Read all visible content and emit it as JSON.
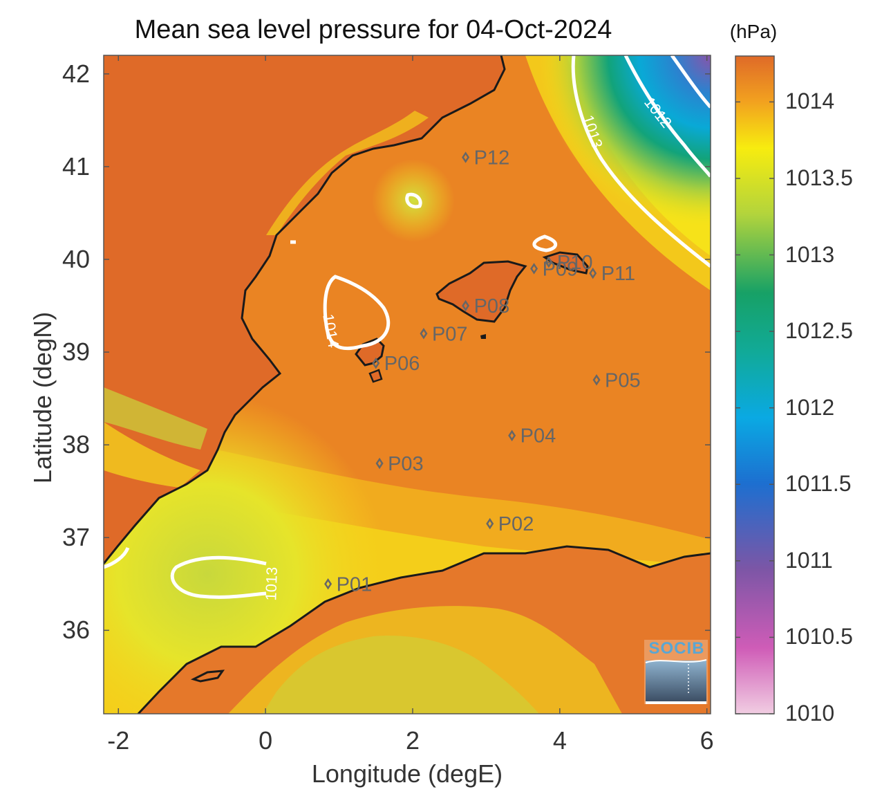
{
  "title": "Mean sea level pressure for 04-Oct-2024",
  "xlabel": "Longitude (degE)",
  "ylabel": "Latitude (degN)",
  "colorbar": {
    "unit": "(hPa)",
    "ticks": [
      "1014",
      "1013.5",
      "1013",
      "1012.5",
      "1012",
      "1011.5",
      "1011",
      "1010.5",
      "1010"
    ],
    "range": [
      1010,
      1014.3
    ],
    "colors": [
      "#f1cde2",
      "#cf5cb7",
      "#7c56a6",
      "#0aa9e3",
      "#11aa98",
      "#17a166",
      "#b3d43c",
      "#f7ec0f",
      "#f6b01d",
      "#ea8a25",
      "#df6a28"
    ]
  },
  "x_ticks": [
    "-2",
    "0",
    "2",
    "4",
    "6"
  ],
  "y_ticks": [
    "42",
    "41",
    "40",
    "39",
    "38",
    "37",
    "36"
  ],
  "contour_labels": [
    {
      "text": "1014",
      "lon": 0.82,
      "lat": 39.22
    },
    {
      "text": "1013",
      "lon": 0.15,
      "lat": 36.5
    },
    {
      "text": "1013",
      "lon": 4.38,
      "lat": 41.36
    },
    {
      "text": "1012",
      "lon": 5.28,
      "lat": 41.55
    }
  ],
  "logo": "SOCIB",
  "chart_data": {
    "type": "map",
    "title": "Mean sea level pressure for 04-Oct-2024",
    "xlabel": "Longitude (degE)",
    "ylabel": "Latitude (degN)",
    "xlim": [
      -2.2,
      6.05
    ],
    "ylim": [
      35.1,
      42.2
    ],
    "color_range_hPa": [
      1010,
      1014.3
    ],
    "contour_levels_hPa": [
      1012,
      1013,
      1014
    ],
    "points": [
      {
        "name": "P01",
        "lon": 0.85,
        "lat": 36.5
      },
      {
        "name": "P02",
        "lon": 3.05,
        "lat": 37.15
      },
      {
        "name": "P03",
        "lon": 1.55,
        "lat": 37.8
      },
      {
        "name": "P04",
        "lon": 3.35,
        "lat": 38.1
      },
      {
        "name": "P05",
        "lon": 4.5,
        "lat": 38.7
      },
      {
        "name": "P06",
        "lon": 1.5,
        "lat": 38.88
      },
      {
        "name": "P07",
        "lon": 2.15,
        "lat": 39.2
      },
      {
        "name": "P08",
        "lon": 2.72,
        "lat": 39.5
      },
      {
        "name": "P09",
        "lon": 3.65,
        "lat": 39.9
      },
      {
        "name": "P10",
        "lon": 3.85,
        "lat": 39.97
      },
      {
        "name": "P11",
        "lon": 4.45,
        "lat": 39.85
      },
      {
        "name": "P12",
        "lon": 2.72,
        "lat": 41.1
      }
    ]
  }
}
